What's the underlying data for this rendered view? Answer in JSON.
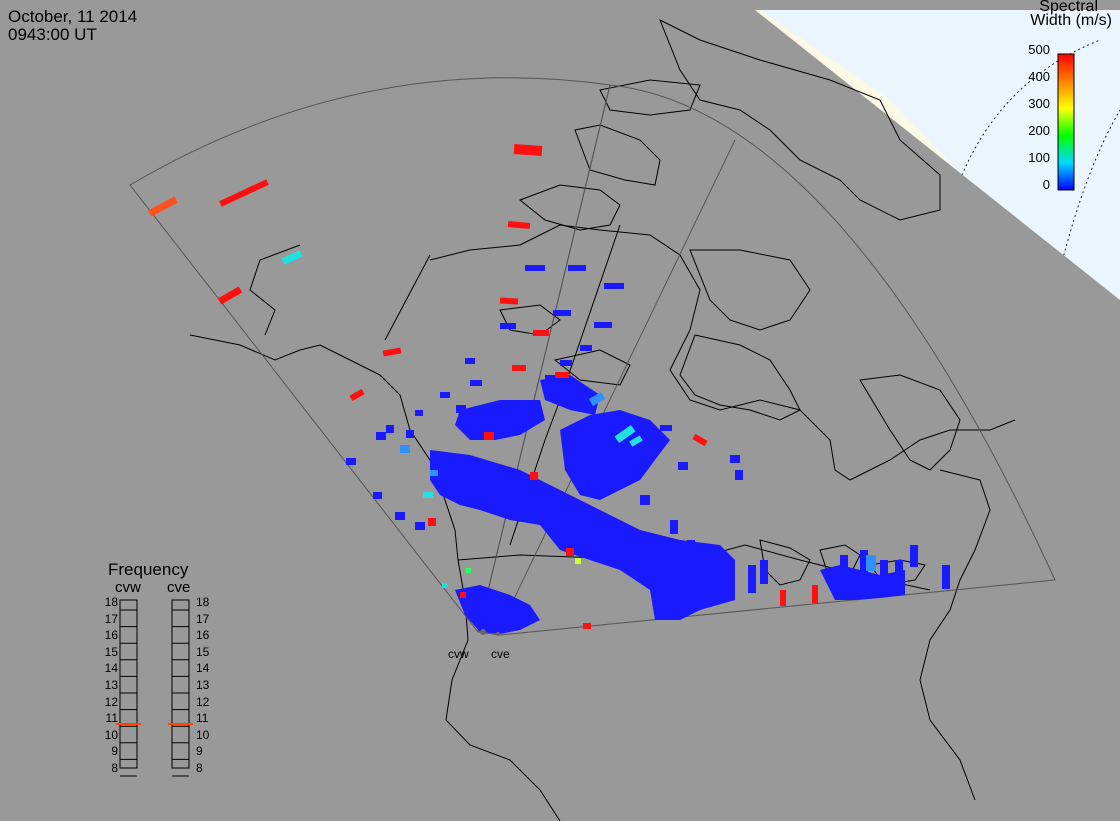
{
  "title": {
    "date": "October, 11 2014",
    "time": "0943:00 UT"
  },
  "colorbar": {
    "title_line1": "Spectral",
    "title_line2": "Width (m/s)",
    "ticks": [
      "500",
      "400",
      "300",
      "200",
      "100",
      "0"
    ],
    "min": 0,
    "max": 500,
    "colors": [
      "#0000ff",
      "#00d8ff",
      "#00ff00",
      "#ffff00",
      "#ff8000",
      "#ff0000"
    ]
  },
  "frequency": {
    "title": "Frequency",
    "radars": [
      {
        "name": "cvw",
        "current_mhz": 10.8
      },
      {
        "name": "cve",
        "current_mhz": 10.8
      }
    ],
    "scale": [
      "18",
      "17",
      "16",
      "15",
      "14",
      "13",
      "12",
      "11",
      "10",
      "9",
      "8"
    ],
    "marker_color": "#ff4500"
  },
  "radar_sites": {
    "west_label": "cvw",
    "east_label": "cve"
  },
  "colors": {
    "background": "#999999",
    "land_outline": "#000000",
    "fov_outline": "#555555",
    "daylight": "#fbf8e4",
    "polar_region": "#e8f4fc",
    "scatter_blue": "#1a1aff",
    "scatter_red": "#ff1010"
  }
}
